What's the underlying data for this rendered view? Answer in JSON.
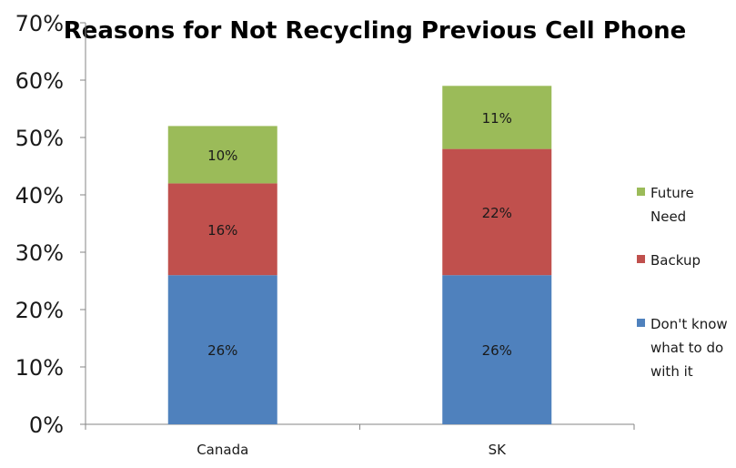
{
  "chart_data": {
    "type": "bar",
    "stacked": true,
    "title": "Reasons for Not Recycling Previous Cell Phone",
    "xlabel": "",
    "ylabel": "",
    "categories": [
      "Canada",
      "SK"
    ],
    "ylim": [
      0,
      70
    ],
    "yticks": [
      "0%",
      "10%",
      "20%",
      "30%",
      "40%",
      "50%",
      "60%",
      "70%"
    ],
    "series": [
      {
        "name": "Don't know what to do with it",
        "legend_lines": [
          "Don't know",
          "what to do",
          "with it"
        ],
        "values": [
          26,
          26
        ],
        "labels": [
          "26%",
          "26%"
        ],
        "color": "#4f81bd"
      },
      {
        "name": "Backup",
        "legend_lines": [
          "Backup"
        ],
        "values": [
          16,
          22
        ],
        "labels": [
          "16%",
          "22%"
        ],
        "color": "#c0504d"
      },
      {
        "name": "Future Need",
        "legend_lines": [
          "Future",
          "Need"
        ],
        "values": [
          10,
          11
        ],
        "labels": [
          "10%",
          "11%"
        ],
        "color": "#9bbb59"
      }
    ],
    "legend_position": "right",
    "grid": false
  }
}
